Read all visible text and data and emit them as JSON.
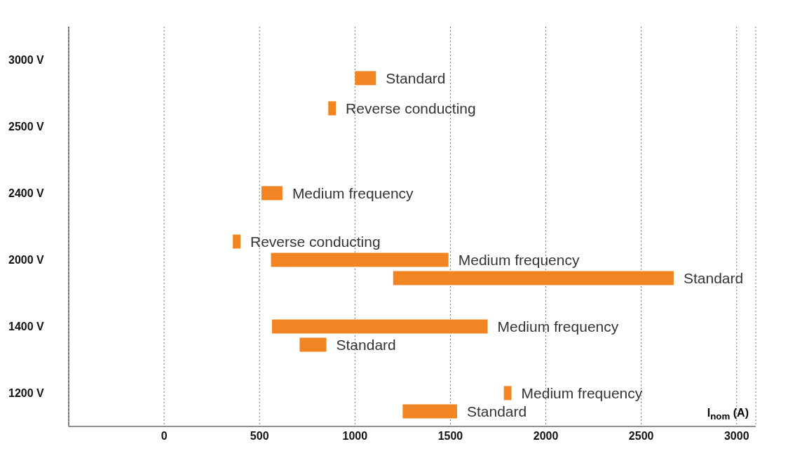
{
  "chart_data": {
    "type": "bar",
    "orientation": "horizontal",
    "xlabel": "I$_{nom}$ (A)",
    "categories": [
      "3000 V",
      "2500 V",
      "2400 V",
      "2000 V",
      "1400 V",
      "1200 V"
    ],
    "series": [
      {
        "name": "Reverse conducting",
        "color": "#f18423",
        "base": [
          null,
          860,
          null,
          360,
          null,
          null
        ],
        "values": [
          null,
          40,
          null,
          40,
          null,
          null
        ]
      },
      {
        "name": "Medium frequency",
        "color": "#f18423",
        "base": [
          null,
          null,
          510,
          560,
          565,
          1780
        ],
        "values": [
          null,
          null,
          110,
          930,
          1130,
          40
        ]
      },
      {
        "name": "Standard",
        "color": "#f18423",
        "base": [
          1000,
          null,
          null,
          1200,
          710,
          1250
        ],
        "values": [
          110,
          null,
          null,
          1470,
          140,
          285
        ]
      }
    ],
    "xlim": [
      -500,
      3100
    ],
    "xticks": [
      0,
      500,
      1000,
      1500,
      2000,
      2500,
      3000
    ],
    "grid": "x",
    "legend": false
  }
}
